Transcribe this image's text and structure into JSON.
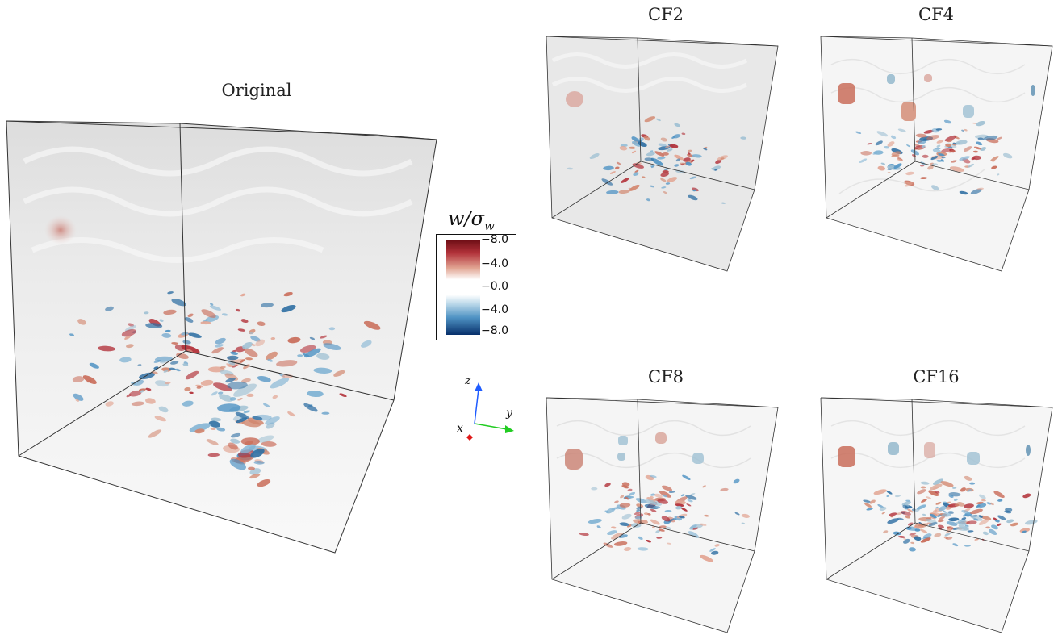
{
  "panels": {
    "original": {
      "title": "Original"
    },
    "cf2": {
      "title": "CF2"
    },
    "cf4": {
      "title": "CF4"
    },
    "cf8": {
      "title": "CF8"
    },
    "cf16": {
      "title": "CF16"
    }
  },
  "colorbar": {
    "title": "w/σ",
    "title_sub": "w",
    "ticks": [
      "−8.0",
      "−4.0",
      "−0.0",
      "−4.0",
      "−8.0"
    ],
    "colors": {
      "dark_red": "#6b0d14",
      "red": "#b2323a",
      "white": "#ffffff",
      "light_blue": "#b7d6e8",
      "dark_blue": "#07306b"
    }
  },
  "axes_triad": {
    "z_label": "z",
    "y_label": "y",
    "x_label": "x",
    "colors": {
      "z": "#1f5cff",
      "y": "#22cc22",
      "x": "#e01818"
    }
  }
}
